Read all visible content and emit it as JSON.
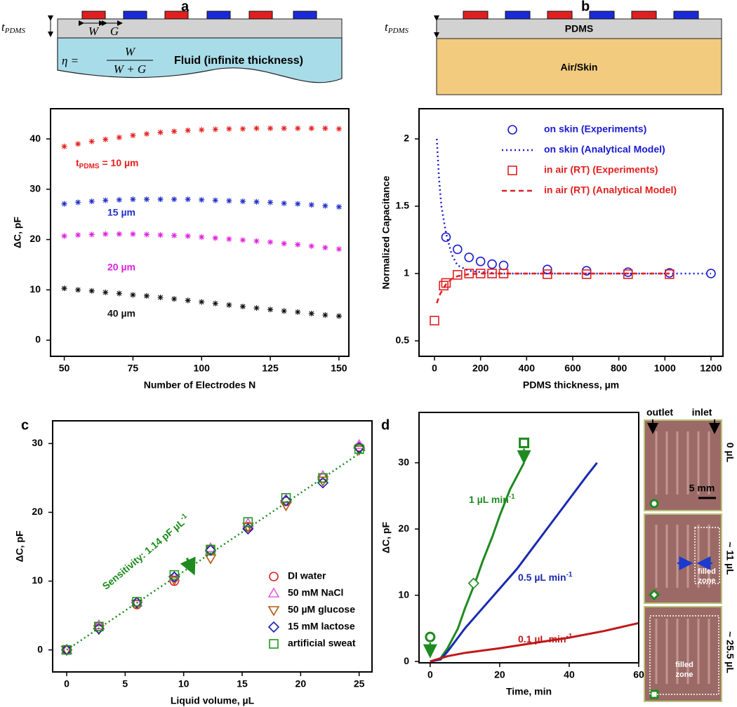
{
  "chart_data": [
    {
      "panel": "a",
      "type": "scatter",
      "xlabel": "Number of Electrodes N",
      "ylabel": "ΔC, pF",
      "xlim": [
        45,
        153.6
      ],
      "ylim": [
        -3.2,
        46
      ],
      "xticks": [
        50,
        75,
        100,
        125,
        150
      ],
      "yticks": [
        0,
        10,
        20,
        30,
        40
      ],
      "x": [
        50,
        55,
        60,
        65,
        70,
        75,
        80,
        85,
        90,
        95,
        100,
        105,
        110,
        115,
        120,
        125,
        130,
        135,
        140,
        145,
        150
      ],
      "series": [
        {
          "name_parts": [
            "t",
            "PDMS",
            " = 10 µm"
          ],
          "color": "#e8201e",
          "marker": "asterisk",
          "values": [
            38.5,
            39.0,
            39.5,
            39.9,
            40.3,
            40.7,
            41.0,
            41.3,
            41.5,
            41.7,
            41.8,
            41.9,
            42.0,
            42.0,
            42.1,
            42.1,
            42.1,
            42.1,
            42.1,
            42.1,
            42.0
          ]
        },
        {
          "name": "15 µm",
          "color": "#2230c8",
          "marker": "asterisk",
          "values": [
            27.1,
            27.4,
            27.6,
            27.8,
            27.9,
            28.0,
            28.0,
            28.0,
            28.0,
            28.0,
            27.9,
            27.8,
            27.7,
            27.6,
            27.5,
            27.4,
            27.2,
            27.1,
            26.9,
            26.7,
            26.5
          ]
        },
        {
          "name": "20 µm",
          "color": "#e020e0",
          "marker": "asterisk",
          "values": [
            20.7,
            20.9,
            21.0,
            21.1,
            21.1,
            21.1,
            21.0,
            20.9,
            20.8,
            20.7,
            20.5,
            20.3,
            20.1,
            19.9,
            19.7,
            19.5,
            19.2,
            19.0,
            18.7,
            18.4,
            18.1
          ]
        },
        {
          "name": "40 µm",
          "color": "#111111",
          "marker": "asterisk",
          "values": [
            10.3,
            10.0,
            9.8,
            9.5,
            9.3,
            9.0,
            8.8,
            8.5,
            8.2,
            7.9,
            7.6,
            7.3,
            7.0,
            6.7,
            6.4,
            6.1,
            5.8,
            5.6,
            5.3,
            5.0,
            4.8
          ]
        }
      ]
    },
    {
      "panel": "b",
      "type": "scatter",
      "xlabel": "PDMS thickness, µm",
      "ylabel": "Normalized Capacitance",
      "xlim": [
        -67,
        1252
      ],
      "ylim": [
        0.385,
        2.224
      ],
      "xticks": [
        0,
        200,
        400,
        600,
        800,
        1000,
        1200
      ],
      "yticks": [
        {
          "value": 0.5,
          "label": "0.5"
        },
        1,
        1.5,
        2
      ],
      "legend": "upper right",
      "series": [
        {
          "name": "on skin (Experiments)",
          "color": "#1a1ad0",
          "marker": "circle",
          "x": [
            50,
            100,
            150,
            200,
            250,
            300,
            490,
            660,
            840,
            1020,
            1200
          ],
          "values": [
            1.27,
            1.18,
            1.12,
            1.09,
            1.07,
            1.06,
            1.03,
            1.02,
            1.01,
            1.005,
            1.0
          ]
        },
        {
          "name": "on skin (Analytical Model)",
          "color": "#1a1ad0",
          "line": "dotted",
          "x": [
            10,
            20,
            30,
            50,
            75,
            100,
            150,
            200,
            300,
            500,
            800,
            1200
          ],
          "values": [
            2.0,
            1.7,
            1.5,
            1.3,
            1.14,
            1.06,
            1.02,
            1.01,
            1.0,
            1.0,
            1.0,
            1.0
          ]
        },
        {
          "name": "in air (RT) (Experiments)",
          "color": "#e02020",
          "marker": "square",
          "x": [
            0,
            40,
            50,
            100,
            150,
            200,
            250,
            300,
            490,
            660,
            840,
            1020
          ],
          "values": [
            0.65,
            0.91,
            0.93,
            0.99,
            1.0,
            1.0,
            1.0,
            1.0,
            0.995,
            0.995,
            0.995,
            0.995
          ]
        },
        {
          "name": "in air (RT) (Analytical Model)",
          "color": "#e02020",
          "line": "dashed",
          "x": [
            10,
            25,
            50,
            75,
            100,
            150,
            200,
            300,
            500,
            800,
            1020
          ],
          "values": [
            0.78,
            0.85,
            0.92,
            0.96,
            0.98,
            0.995,
            1.0,
            1.0,
            1.0,
            1.0,
            1.0
          ]
        }
      ]
    },
    {
      "panel": "c",
      "type": "scatter",
      "xlabel": "Liquid volume, µL",
      "ylabel": "ΔC, pF",
      "xlim": [
        -1.2,
        26.1
      ],
      "ylim": [
        -3.2,
        33.3
      ],
      "xticks": [
        0,
        5,
        10,
        15,
        20,
        25
      ],
      "yticks": [
        0,
        10,
        20,
        30
      ],
      "legend": "lower right",
      "x": [
        0,
        2.75,
        6,
        9.2,
        12.3,
        15.5,
        18.75,
        21.9,
        25
      ],
      "series": [
        {
          "name": "DI water",
          "color": "#e02020",
          "marker": "circle",
          "values": [
            0,
            3.4,
            6.6,
            10.0,
            14.6,
            17.9,
            21.6,
            25.0,
            29.5
          ]
        },
        {
          "name": "50 mM NaCl",
          "color": "#e060e0",
          "marker": "triangle",
          "values": [
            0,
            3.6,
            6.9,
            10.6,
            14.8,
            18.4,
            21.9,
            25.3,
            29.8
          ]
        },
        {
          "name": "50 µM glucose",
          "color": "#b05a10",
          "marker": "triangle-down",
          "values": [
            0,
            3.0,
            6.7,
            10.2,
            13.3,
            17.9,
            21.0,
            24.6,
            29.1
          ]
        },
        {
          "name": "15 mM lactose",
          "color": "#1a1ab0",
          "marker": "diamond",
          "values": [
            0,
            3.1,
            6.9,
            10.6,
            14.5,
            17.6,
            21.7,
            24.3,
            29.4
          ]
        },
        {
          "name": "artificial sweat",
          "color": "#1a9a1a",
          "marker": "square",
          "values": [
            0,
            3.4,
            7.0,
            10.9,
            14.6,
            18.6,
            22.1,
            25.0,
            29.2
          ]
        }
      ],
      "fit": {
        "x": [
          0,
          25.5
        ],
        "values": [
          0,
          29.1
        ],
        "color": "#1a8a1a",
        "line": "dotted"
      },
      "annotation_parts": [
        "Sensitivity: 1.14 pF µL",
        "-1"
      ]
    },
    {
      "panel": "d",
      "type": "line",
      "xlabel": "Time, min",
      "ylabel": "ΔC, pF",
      "xlim": [
        -3.2,
        60
      ],
      "ylim": [
        -0.2,
        37.6
      ],
      "xticks": [
        0,
        20,
        40,
        60
      ],
      "yticks": [
        0,
        10,
        20,
        30
      ],
      "series": [
        {
          "name_parts": [
            "1 µL min",
            "-1"
          ],
          "color": "#1f8a1f",
          "x": [
            0,
            3,
            5,
            8,
            10,
            13,
            15,
            18,
            20,
            23,
            25,
            27
          ],
          "values": [
            0,
            0.5,
            2,
            5,
            8,
            12,
            15,
            19,
            22,
            26,
            28,
            30
          ]
        },
        {
          "name_parts": [
            "0.5 µL min",
            "-1"
          ],
          "color": "#1a2ab0",
          "x": [
            0,
            3,
            5,
            10,
            15,
            20,
            25,
            30,
            35,
            40,
            45,
            48
          ],
          "values": [
            0,
            0.3,
            1.5,
            5,
            8,
            11,
            14,
            17.5,
            21,
            24.5,
            28,
            30
          ]
        },
        {
          "name_parts": [
            "0.1 µL min",
            "-1"
          ],
          "color": "#c01818",
          "x": [
            0,
            5,
            10,
            20,
            30,
            40,
            50,
            60
          ],
          "values": [
            0,
            0.8,
            1.3,
            2,
            2.8,
            3.6,
            4.6,
            5.8
          ]
        }
      ],
      "markers": {
        "color": "#1f8a1f",
        "points": [
          {
            "shape": "circle",
            "x": 0,
            "value": 3.7
          },
          {
            "shape": "diamond",
            "x": 12.5,
            "value": 11.8
          },
          {
            "shape": "square",
            "x": 27,
            "value": 33
          }
        ]
      }
    }
  ],
  "schematics": {
    "a": {
      "thickness": "t",
      "thickness_sub": "PDMS",
      "width": "W",
      "gap": "G",
      "ratio_symbol": "η =",
      "ratio_numerator": "W",
      "ratio_denominator": "W + G",
      "fluid": "Fluid (infinite thickness)"
    },
    "b": {
      "thickness": "t",
      "thickness_sub": "PDMS",
      "layer": "PDMS",
      "substrate": "Air/Skin"
    }
  },
  "photos": {
    "outlet": "outlet",
    "inlet": "inlet",
    "scale_bar": "5 mm",
    "frames": [
      {
        "volume": "0 µL"
      },
      {
        "volume": "~ 11 µL",
        "zone": [
          "filled",
          "zone"
        ]
      },
      {
        "volume": "~ 25.5 µL",
        "zone": [
          "filled",
          "zone"
        ]
      }
    ]
  }
}
